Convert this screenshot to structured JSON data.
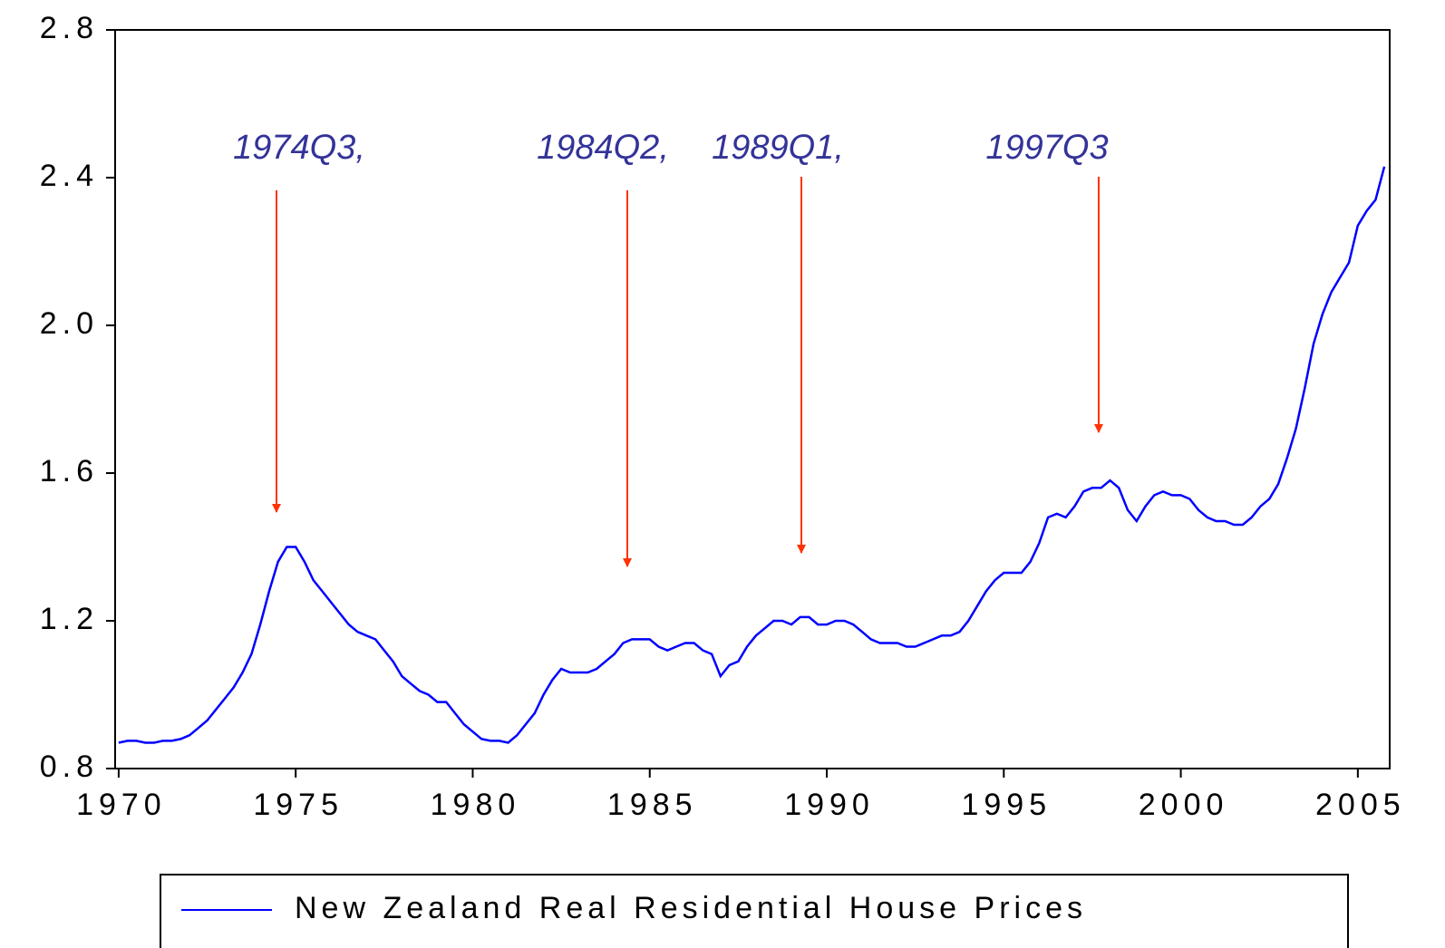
{
  "chart_data": {
    "type": "line",
    "annotations": [
      "1974Q3,",
      "1984Q2,",
      "1989Q1,",
      "1997Q3"
    ],
    "x": [
      1970,
      1970.25,
      1970.5,
      1970.75,
      1971,
      1971.25,
      1971.5,
      1971.75,
      1972,
      1972.25,
      1972.5,
      1972.75,
      1973,
      1973.25,
      1973.5,
      1973.75,
      1974,
      1974.25,
      1974.5,
      1974.75,
      1975,
      1975.25,
      1975.5,
      1975.75,
      1976,
      1976.25,
      1976.5,
      1976.75,
      1977,
      1977.25,
      1977.5,
      1977.75,
      1978,
      1978.25,
      1978.5,
      1978.75,
      1979,
      1979.25,
      1979.5,
      1979.75,
      1980,
      1980.25,
      1980.5,
      1980.75,
      1981,
      1981.25,
      1981.5,
      1981.75,
      1982,
      1982.25,
      1982.5,
      1982.75,
      1983,
      1983.25,
      1983.5,
      1983.75,
      1984,
      1984.25,
      1984.5,
      1984.75,
      1985,
      1985.25,
      1985.5,
      1985.75,
      1986,
      1986.25,
      1986.5,
      1986.75,
      1987,
      1987.25,
      1987.5,
      1987.75,
      1988,
      1988.25,
      1988.5,
      1988.75,
      1989,
      1989.25,
      1989.5,
      1989.75,
      1990,
      1990.25,
      1990.5,
      1990.75,
      1991,
      1991.25,
      1991.5,
      1991.75,
      1992,
      1992.25,
      1992.5,
      1992.75,
      1993,
      1993.25,
      1993.5,
      1993.75,
      1994,
      1994.25,
      1994.5,
      1994.75,
      1995,
      1995.25,
      1995.5,
      1995.75,
      1996,
      1996.25,
      1996.5,
      1996.75,
      1997,
      1997.25,
      1997.5,
      1997.75,
      1998,
      1998.25,
      1998.5,
      1998.75,
      1999,
      1999.25,
      1999.5,
      1999.75,
      2000,
      2000.25,
      2000.5,
      2000.75,
      2001,
      2001.25,
      2001.5,
      2001.75,
      2002,
      2002.25,
      2002.5,
      2002.75,
      2003,
      2003.25,
      2003.5,
      2003.75,
      2004,
      2004.25,
      2004.5,
      2004.75,
      2005,
      2005.25,
      2005.5,
      2005.75
    ],
    "series": [
      {
        "name": "New Zealand Real Residential House Prices",
        "color": "#0000ff",
        "values": [
          0.87,
          0.875,
          0.875,
          0.87,
          0.87,
          0.875,
          0.875,
          0.88,
          0.89,
          0.91,
          0.93,
          0.96,
          0.99,
          1.02,
          1.06,
          1.11,
          1.19,
          1.28,
          1.36,
          1.4,
          1.4,
          1.36,
          1.31,
          1.28,
          1.25,
          1.22,
          1.19,
          1.17,
          1.16,
          1.15,
          1.12,
          1.09,
          1.05,
          1.03,
          1.01,
          1.0,
          0.98,
          0.98,
          0.95,
          0.92,
          0.9,
          0.88,
          0.875,
          0.875,
          0.87,
          0.89,
          0.92,
          0.95,
          1.0,
          1.04,
          1.07,
          1.06,
          1.06,
          1.06,
          1.07,
          1.09,
          1.11,
          1.14,
          1.15,
          1.15,
          1.15,
          1.13,
          1.12,
          1.13,
          1.14,
          1.14,
          1.12,
          1.11,
          1.05,
          1.08,
          1.09,
          1.13,
          1.16,
          1.18,
          1.2,
          1.2,
          1.19,
          1.21,
          1.21,
          1.19,
          1.19,
          1.2,
          1.2,
          1.19,
          1.17,
          1.15,
          1.14,
          1.14,
          1.14,
          1.13,
          1.13,
          1.14,
          1.15,
          1.16,
          1.16,
          1.17,
          1.2,
          1.24,
          1.28,
          1.31,
          1.33,
          1.33,
          1.33,
          1.36,
          1.41,
          1.48,
          1.49,
          1.48,
          1.51,
          1.55,
          1.56,
          1.56,
          1.58,
          1.56,
          1.5,
          1.47,
          1.51,
          1.54,
          1.55,
          1.54,
          1.54,
          1.53,
          1.5,
          1.48,
          1.47,
          1.47,
          1.46,
          1.46,
          1.48,
          1.51,
          1.53,
          1.57,
          1.64,
          1.72,
          1.83,
          1.95,
          2.03,
          2.09,
          2.13,
          2.17,
          2.27,
          2.31,
          2.34,
          2.43
        ]
      }
    ],
    "xlim": [
      1969.9,
      2005.9
    ],
    "xticks": [
      1970,
      1975,
      1980,
      1985,
      1990,
      1995,
      2000,
      2005
    ],
    "ylim": [
      0.8,
      2.8
    ],
    "yticks": [
      0.8,
      1.2,
      1.6,
      {
        "value": 2,
        "label": "2.0"
      },
      2.4,
      2.8
    ]
  }
}
